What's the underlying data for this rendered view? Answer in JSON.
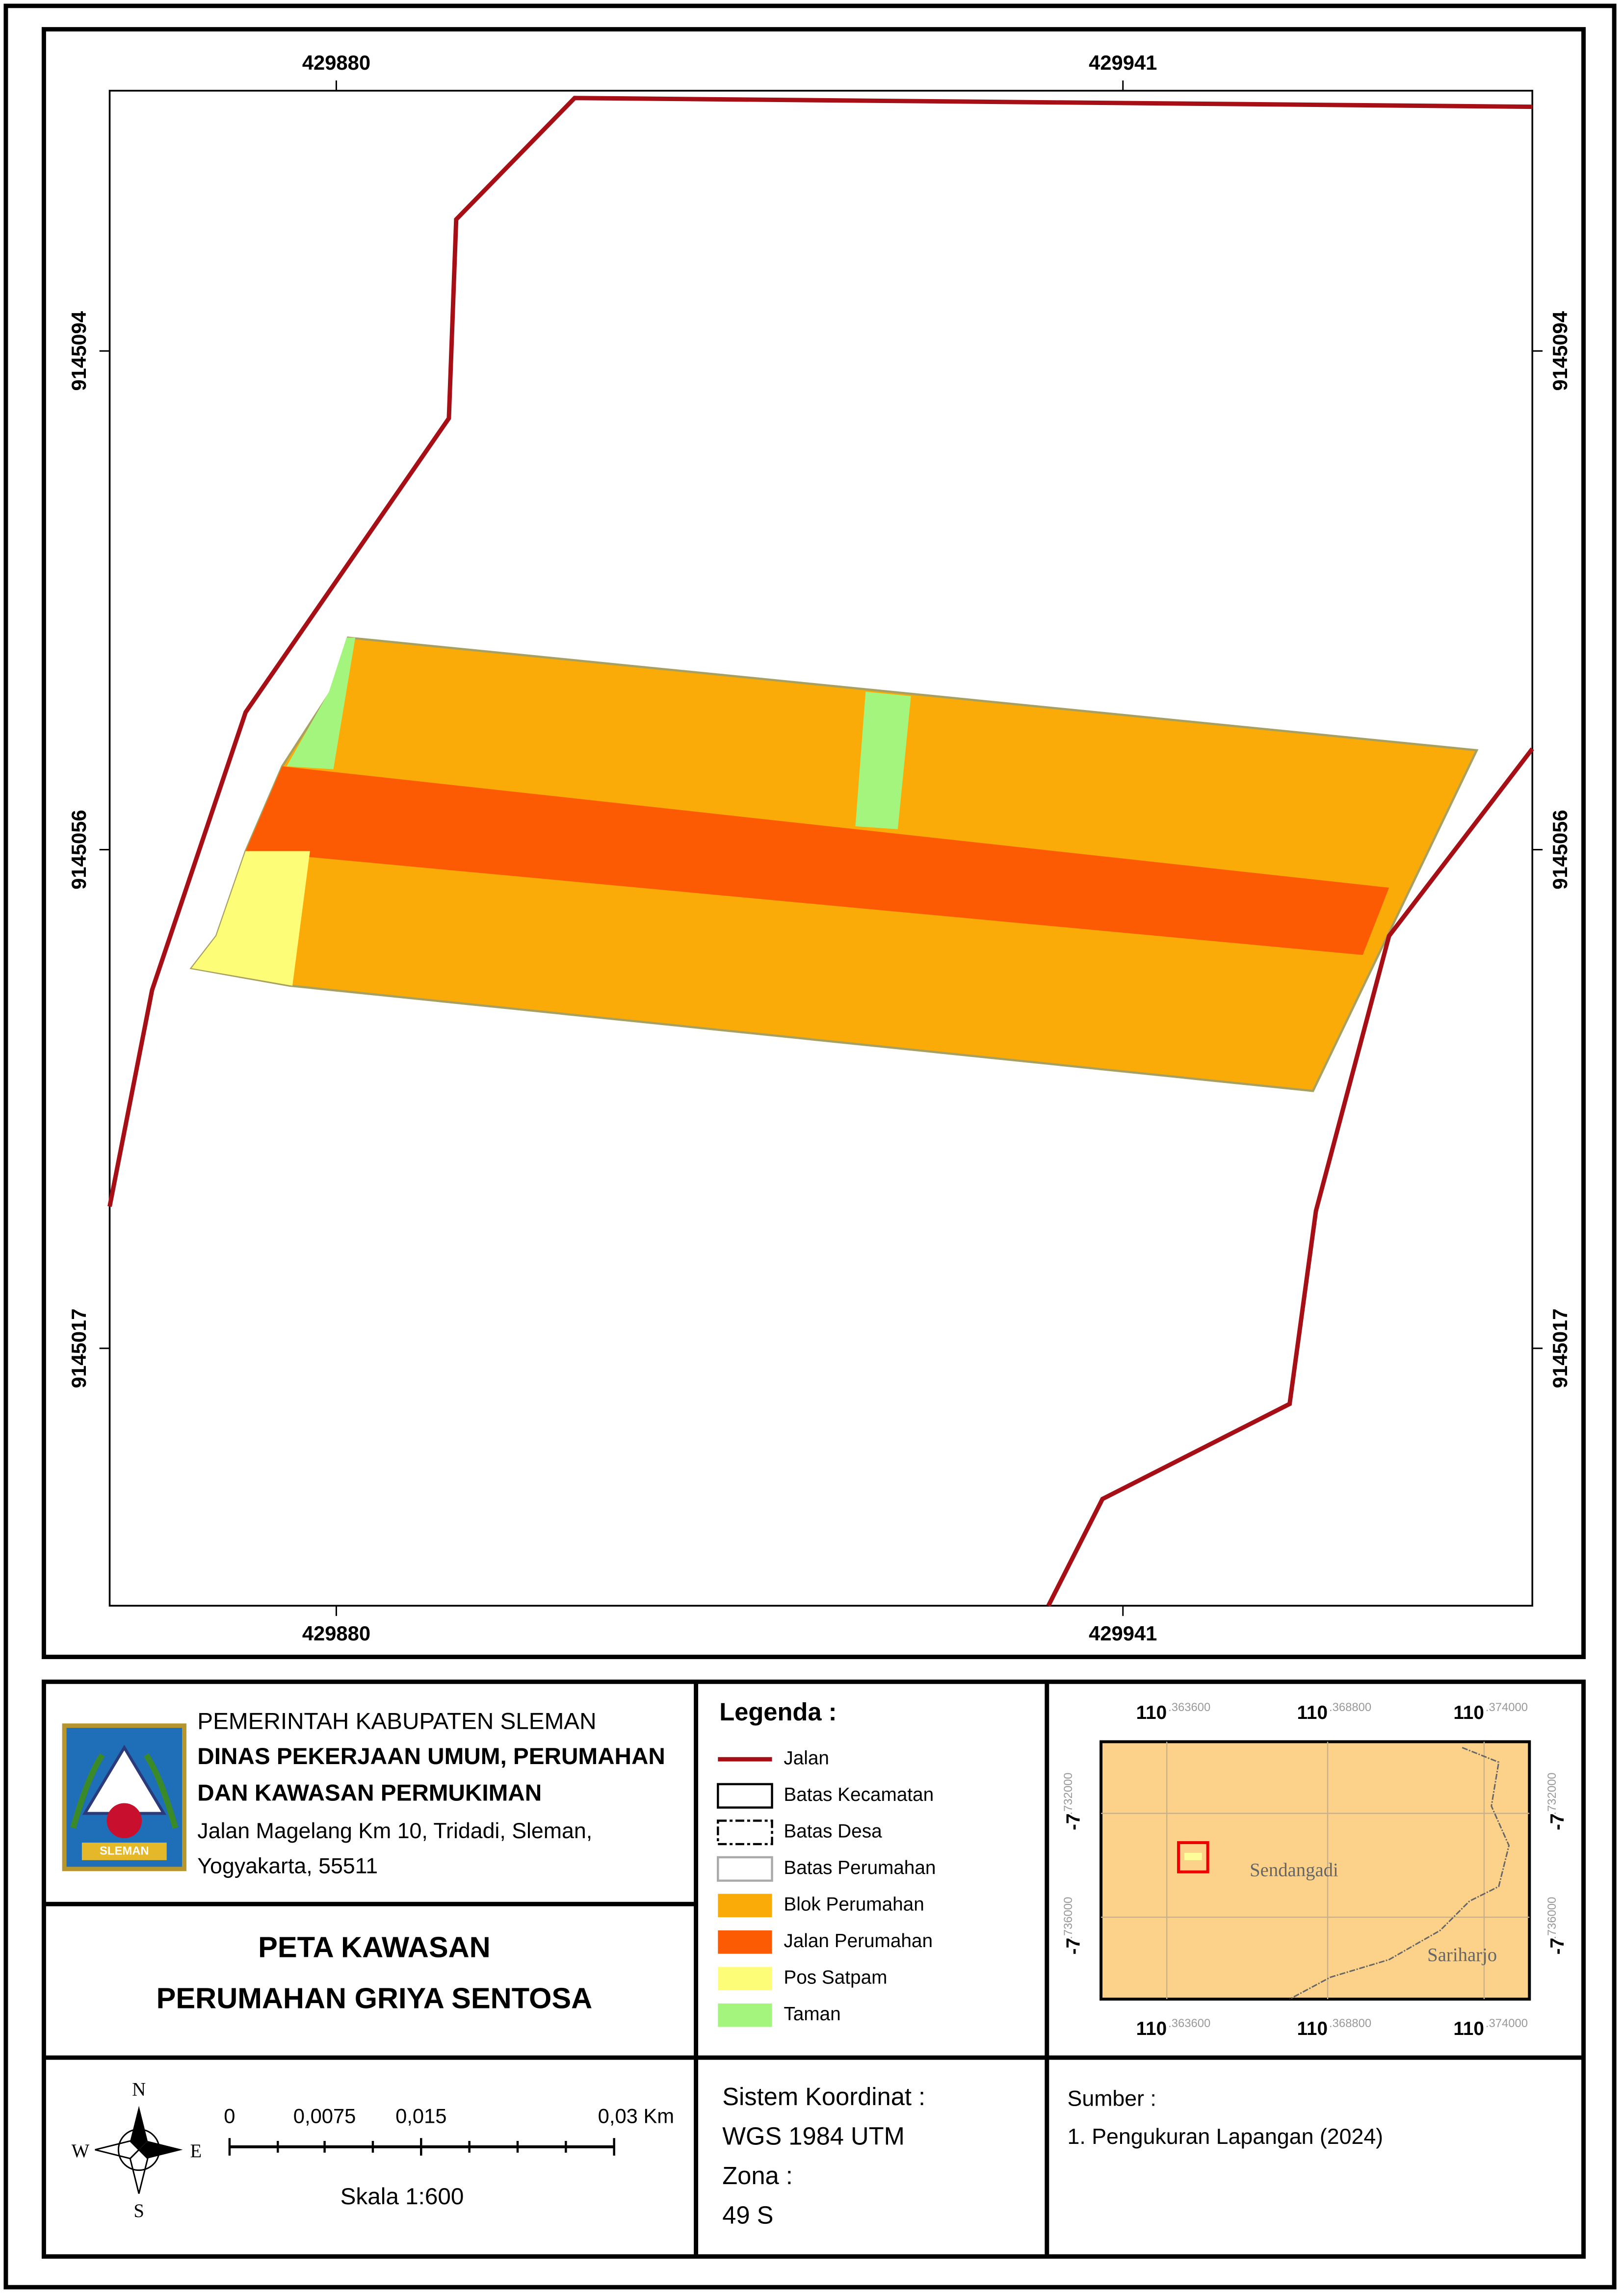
{
  "map": {
    "x_ticks": [
      "429880",
      "429941"
    ],
    "y_ticks": [
      "9145094",
      "9145056",
      "9145017"
    ]
  },
  "header": {
    "agency": "PEMERINTAH KABUPATEN SLEMAN",
    "department": [
      "DINAS PEKERJAAN UMUM, PERUMAHAN",
      "DAN KAWASAN PERMUKIMAN"
    ],
    "address": [
      "Jalan Magelang Km 10, Tridadi, Sleman,",
      "Yogyakarta, 55511"
    ],
    "logo_text": "SLEMAN"
  },
  "title": [
    "PETA KAWASAN",
    "PERUMAHAN GRIYA SENTOSA"
  ],
  "legend": {
    "title": "Legenda :",
    "items": [
      "Jalan",
      "Batas Kecamatan",
      "Batas Desa",
      "Batas Perumahan",
      "Blok Perumahan",
      "Jalan Perumahan",
      "Pos Satpam",
      "Taman"
    ]
  },
  "inset": {
    "x_labels": [
      {
        "deg": "110",
        "min": ".363600"
      },
      {
        "deg": "110",
        "min": ".368800"
      },
      {
        "deg": "110",
        "min": ".374000"
      }
    ],
    "y_labels": [
      {
        "deg": "-7",
        "min": ".732000"
      },
      {
        "deg": "-7",
        "min": ".736000"
      }
    ],
    "places": [
      "Sendangadi",
      "Sariharjo"
    ]
  },
  "scale": {
    "labels": [
      "0",
      "0,0075",
      "0,015",
      "0,03 Km"
    ],
    "text": "Skala 1:600",
    "compass": [
      "N",
      "E",
      "S",
      "W"
    ]
  },
  "coordinate_system": [
    "Sistem Koordinat :",
    "WGS 1984 UTM",
    "Zona :",
    "49 S"
  ],
  "source": [
    "Sumber :",
    "1. Pengukuran Lapangan (2024)"
  ]
}
